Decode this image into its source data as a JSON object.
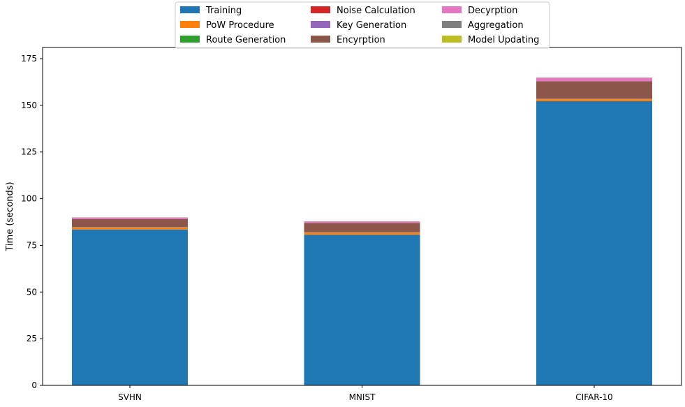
{
  "chart_data": {
    "type": "bar",
    "stacked": true,
    "title": "",
    "xlabel": "",
    "ylabel": "Time (seconds)",
    "ylim": [
      0,
      181
    ],
    "yticks": [
      0,
      25,
      50,
      75,
      100,
      125,
      150,
      175
    ],
    "categories": [
      "SVHN",
      "MNIST",
      "CIFAR-10"
    ],
    "grid": false,
    "legend_position": "top-center",
    "legend_columns": 3,
    "series": [
      {
        "name": "Training",
        "color": "#1f77b4",
        "values": [
          83.5,
          80.7,
          152.2
        ]
      },
      {
        "name": "PoW Procedure",
        "color": "#ff7f0e",
        "values": [
          1.1,
          1.1,
          1.1
        ]
      },
      {
        "name": "Route Generation",
        "color": "#2ca02c",
        "values": [
          0.1,
          0.1,
          0.1
        ]
      },
      {
        "name": "Noise Calculation",
        "color": "#d62728",
        "values": [
          0.1,
          0.1,
          0.1
        ]
      },
      {
        "name": "Key Generation",
        "color": "#9467bd",
        "values": [
          0.1,
          0.1,
          0.1
        ]
      },
      {
        "name": "Encyrption",
        "color": "#8c564b",
        "values": [
          4.2,
          4.9,
          9.3
        ]
      },
      {
        "name": "Decyrption",
        "color": "#e377c2",
        "values": [
          0.8,
          0.8,
          1.9
        ]
      },
      {
        "name": "Aggregation",
        "color": "#7f7f7f",
        "values": [
          0.05,
          0.05,
          0.05
        ]
      },
      {
        "name": "Model Updating",
        "color": "#bcbd22",
        "values": [
          0.05,
          0.05,
          0.05
        ]
      }
    ]
  }
}
